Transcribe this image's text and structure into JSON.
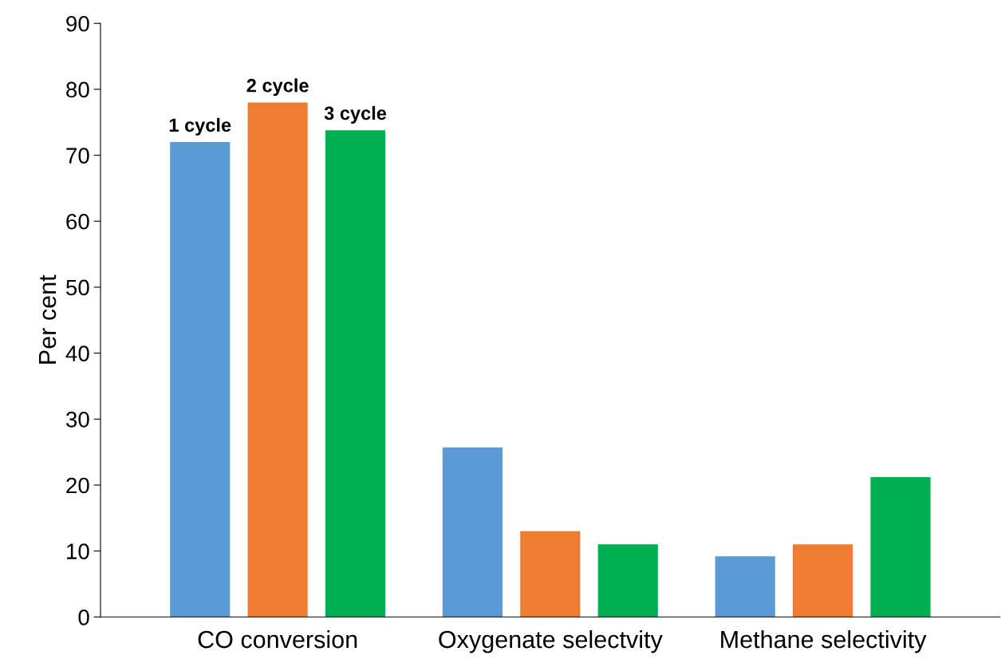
{
  "chart_data": {
    "type": "bar",
    "ylabel": "Per cent",
    "categories": [
      "CO conversion",
      "Oxygenate selectvity",
      "Methane selectivity"
    ],
    "series": [
      {
        "name": "1 cycle",
        "color": "#5b9bd5",
        "values": [
          72,
          25.7,
          9.2
        ]
      },
      {
        "name": "2 cycle",
        "color": "#ed7d31",
        "values": [
          78,
          13,
          11
        ]
      },
      {
        "name": "3 cycle",
        "color": "#00b050",
        "values": [
          73.8,
          11,
          21.2
        ]
      }
    ],
    "ylim": [
      0,
      90
    ],
    "yticks": [
      0,
      10,
      20,
      30,
      40,
      50,
      60,
      70,
      80,
      90
    ],
    "grid": false,
    "legend": false
  }
}
